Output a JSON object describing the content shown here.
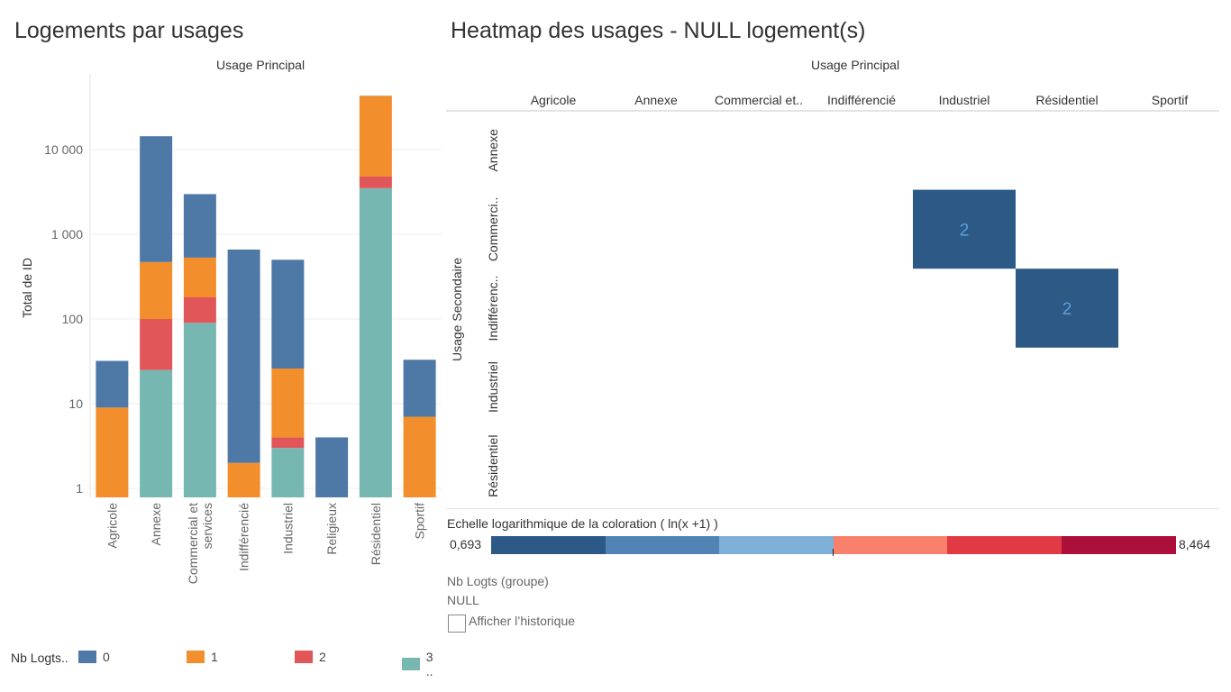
{
  "left": {
    "title": "Logements par usages",
    "col_header": "Usage Principal",
    "y_axis_label": "Total de ID"
  },
  "legend": {
    "title": "Nb Logts..",
    "items": [
      {
        "label": "0",
        "color": "#4e79a7"
      },
      {
        "label": "1",
        "color": "#f28e2b"
      },
      {
        "label": "2",
        "color": "#e15759"
      },
      {
        "label": "3 ..",
        "color": "#76b7b2"
      }
    ]
  },
  "right": {
    "title": "Heatmap des usages - NULL logement(s)",
    "col_header": "Usage Principal",
    "row_header": "Usage Secondaire",
    "columns": [
      "Agricole",
      "Annexe",
      "Commercial et..",
      "Indifférencié",
      "Industriel",
      "Résidentiel",
      "Sportif"
    ],
    "rows": [
      "Annexe",
      "Commerci..",
      "Indifférenc..",
      "Industriel",
      "Résidentiel"
    ]
  },
  "scale": {
    "label": "Echelle logarithmique de la coloration ( ln(x +1) )",
    "min": "0,693",
    "max": "8,464",
    "colors": [
      "#2c5985",
      "#5183b5",
      "#7eafd6",
      "#f8806d",
      "#e13a44",
      "#ad0f3b"
    ]
  },
  "filter": {
    "label": "Nb Logts (groupe)",
    "value": "NULL",
    "history_label": "Afficher l’historique"
  },
  "chart_data": [
    {
      "type": "bar",
      "stacked": true,
      "y_scale": "log",
      "title": "Logements par usages",
      "xlabel": "Usage Principal",
      "ylabel": "Total de ID",
      "ylim": [
        1,
        50000
      ],
      "y_ticks": [
        1,
        10,
        100,
        1000,
        10000
      ],
      "y_tick_labels": [
        "1",
        "10",
        "100",
        "1 000",
        "10 000"
      ],
      "categories": [
        "Agricole",
        "Annexe",
        "Commercial et services",
        "Indifférencié",
        "Industriel",
        "Religieux",
        "Résidentiel",
        "Sportif"
      ],
      "series": [
        {
          "name": "3 ..",
          "values": [
            0,
            25,
            90,
            0,
            3,
            0,
            3500,
            0
          ]
        },
        {
          "name": "2",
          "values": [
            0,
            75,
            90,
            0,
            1,
            0,
            1300,
            0
          ]
        },
        {
          "name": "1",
          "values": [
            9,
            370,
            350,
            2,
            22,
            0,
            38200,
            7
          ]
        },
        {
          "name": "0",
          "values": [
            23,
            13900,
            2450,
            658,
            474,
            4,
            200,
            26
          ]
        }
      ]
    },
    {
      "type": "heatmap",
      "title": "Heatmap des usages - NULL logement(s)",
      "xlabel": "Usage Principal",
      "ylabel": "Usage Secondaire",
      "x": [
        "Agricole",
        "Annexe",
        "Commercial et..",
        "Indifférencié",
        "Industriel",
        "Résidentiel",
        "Sportif"
      ],
      "y": [
        "Annexe",
        "Commerci..",
        "Indifférenc..",
        "Industriel",
        "Résidentiel"
      ],
      "cells": [
        {
          "x": "Industriel",
          "y": "Commerci..",
          "value": 2
        },
        {
          "x": "Résidentiel",
          "y": "Indifférenc..",
          "value": 2
        }
      ]
    }
  ]
}
